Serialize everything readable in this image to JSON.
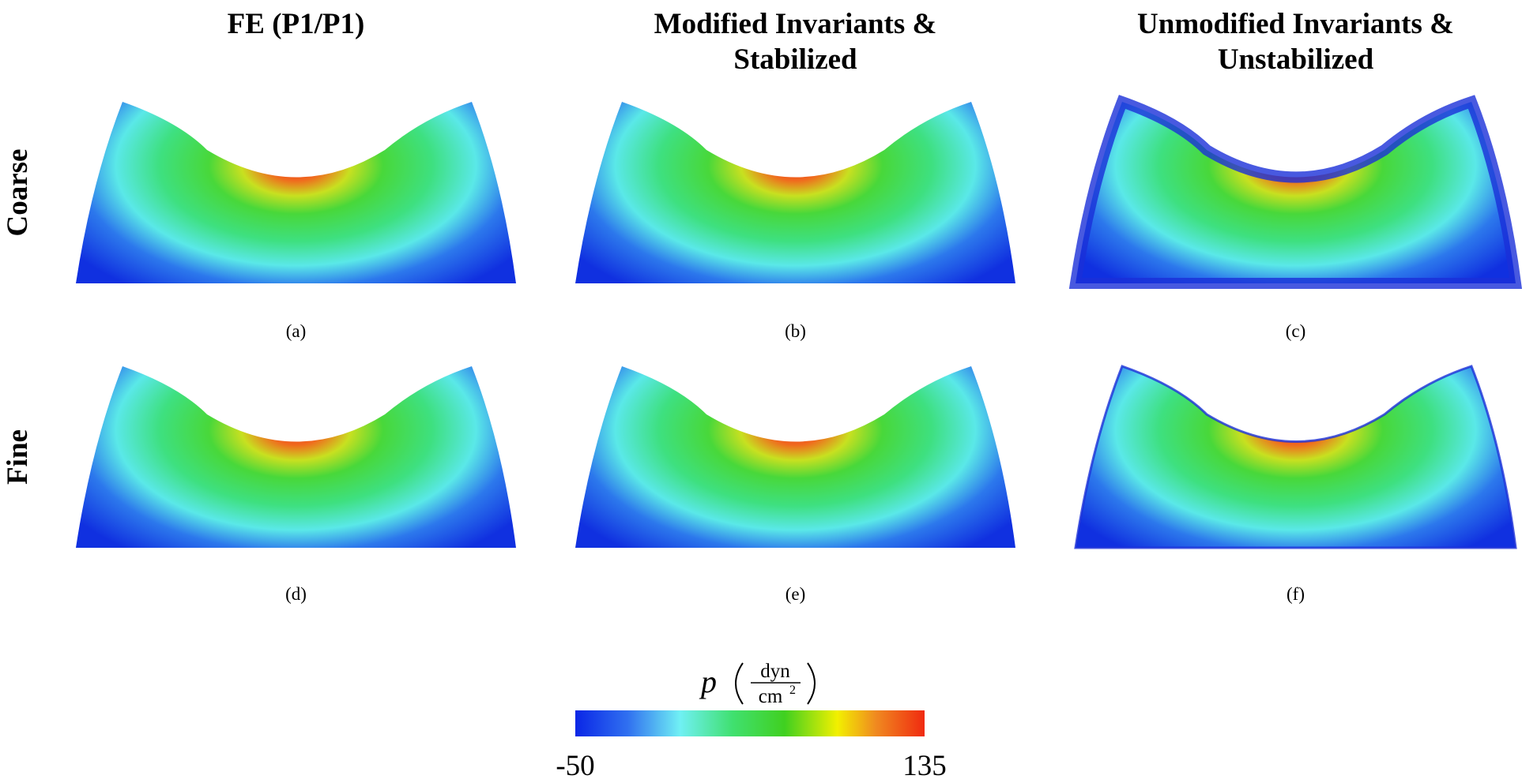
{
  "columns": [
    {
      "lines": [
        "FE (P1/P1)"
      ]
    },
    {
      "lines": [
        "Modified Invariants &",
        "Stabilized"
      ]
    },
    {
      "lines": [
        "Unmodified Invariants &",
        "Unstabilized"
      ]
    }
  ],
  "rows": [
    "Coarse",
    "Fine"
  ],
  "captions": [
    "(a)",
    "(b)",
    "(c)",
    "(d)",
    "(e)",
    "(f)"
  ],
  "colorbar": {
    "label": "p",
    "unit_numerator": "dyn",
    "unit_denominator": "cm",
    "unit_exponent": "2",
    "lim": [
      -50,
      135
    ],
    "ticks": [
      -50,
      135
    ]
  }
}
